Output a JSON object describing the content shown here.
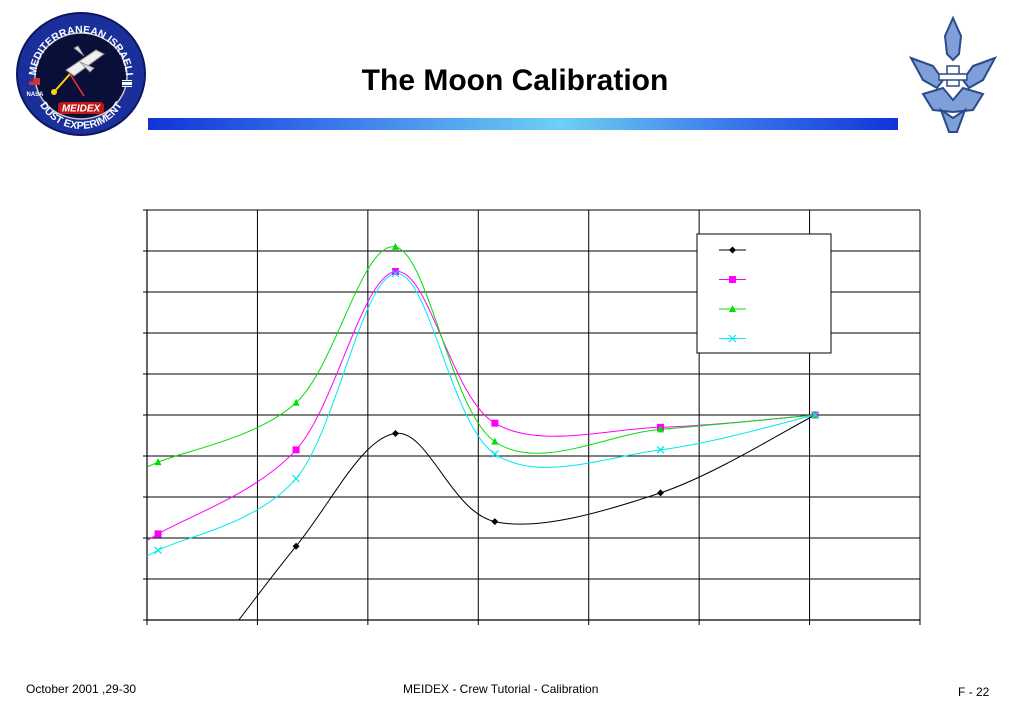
{
  "slide": {
    "title": "The Moon Calibration"
  },
  "logo_left": {
    "ring_top_text": "MEDITERRANEAN ISRAELI",
    "ring_bottom_text": "DUST EXPERIMENT",
    "center_text": "MEIDEX",
    "small_text": "NASA"
  },
  "footer": {
    "date": "October 2001 ,29-30",
    "center": "MEIDEX - Crew Tutorial - Calibration",
    "page": "F - 22"
  },
  "colors": {
    "series_black": "#000000",
    "series_magenta": "#ff00ff",
    "series_green": "#00e000",
    "series_cyan": "#00e8f0",
    "title_bar": "#1034d8"
  },
  "chart_data": {
    "type": "line",
    "grid": true,
    "legend_placement": "top-right",
    "ylim": [
      0,
      10
    ],
    "xlim": [
      0,
      7
    ],
    "xlabel": "",
    "ylabel": "",
    "series": [
      {
        "marker": "diamond",
        "color": "#000000",
        "points": [
          [
            0.3,
            -1.9
          ],
          [
            1.35,
            1.8
          ],
          [
            2.25,
            4.55
          ],
          [
            3.15,
            2.4
          ],
          [
            4.65,
            3.1
          ],
          [
            6.05,
            5.0
          ]
        ]
      },
      {
        "marker": "square",
        "color": "#ff00ff",
        "points": [
          [
            0.1,
            2.1
          ],
          [
            1.35,
            4.15
          ],
          [
            2.25,
            8.5
          ],
          [
            3.15,
            4.8
          ],
          [
            4.65,
            4.7
          ],
          [
            6.05,
            5.0
          ]
        ]
      },
      {
        "marker": "triangle",
        "color": "#00e000",
        "points": [
          [
            0.1,
            3.85
          ],
          [
            1.35,
            5.3
          ],
          [
            2.25,
            9.1
          ],
          [
            3.15,
            4.35
          ],
          [
            4.65,
            4.65
          ],
          [
            6.05,
            5.0
          ]
        ]
      },
      {
        "marker": "x",
        "color": "#00e8f0",
        "points": [
          [
            0.1,
            1.7
          ],
          [
            1.35,
            3.45
          ],
          [
            2.25,
            8.45
          ],
          [
            3.15,
            4.05
          ],
          [
            4.65,
            4.15
          ],
          [
            6.05,
            5.0
          ]
        ]
      }
    ]
  }
}
